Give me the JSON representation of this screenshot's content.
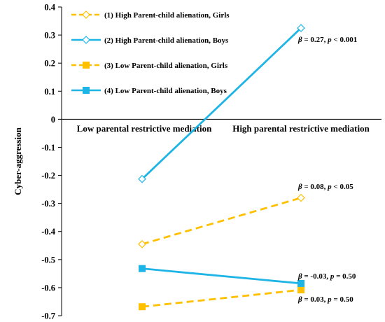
{
  "chart_data": {
    "type": "line",
    "ylabel": "Cyber-aggression",
    "xlabel": "",
    "ylim": [
      -0.7,
      0.4
    ],
    "yticks": [
      0.4,
      0.3,
      0.2,
      0.1,
      0,
      -0.1,
      -0.2,
      -0.3,
      -0.4,
      -0.5,
      -0.6,
      -0.7
    ],
    "ytick_labels": [
      "0.4",
      "0.3",
      "0.2",
      "0.1",
      "0",
      "-0.1",
      "-0.2",
      "-0.3",
      "-0.4",
      "-0.5",
      "-0.6",
      "-0.7"
    ],
    "categories": [
      "Low parental restrictive mediation",
      "High parental restrictive mediation"
    ],
    "grid": false,
    "legend_position": "top-left",
    "series": [
      {
        "name": "(1) High Parent-child alienation, Girls",
        "values": [
          -0.445,
          -0.28
        ],
        "color": "#FFC000",
        "dash": true,
        "marker": "open-diamond"
      },
      {
        "name": "(2) High Parent-child alienation, Boys",
        "values": [
          -0.213,
          0.325
        ],
        "color": "#1FB4E6",
        "dash": false,
        "marker": "open-diamond"
      },
      {
        "name": "(3) Low Parent-child alienation, Girls",
        "values": [
          -0.668,
          -0.608
        ],
        "color": "#FFC000",
        "dash": true,
        "marker": "filled-square"
      },
      {
        "name": "(4) Low Parent-child alienation, Boys",
        "values": [
          -0.532,
          -0.585
        ],
        "color": "#1FB4E6",
        "dash": false,
        "marker": "filled-square"
      }
    ],
    "annotations": [
      {
        "pre": "β",
        "text": " = 0.27, ",
        "p": "p",
        "post": " < 0.001",
        "series": 1
      },
      {
        "pre": "β",
        "text": " = 0.08, ",
        "p": "p",
        "post": " < 0.05",
        "series": 0
      },
      {
        "pre": "β",
        "text": " = -0.03, ",
        "p": "p",
        "post": " = 0.50",
        "series": 3
      },
      {
        "pre": "β",
        "text": " = 0.03, ",
        "p": "p",
        "post": " = 0.50",
        "series": 2
      }
    ]
  }
}
